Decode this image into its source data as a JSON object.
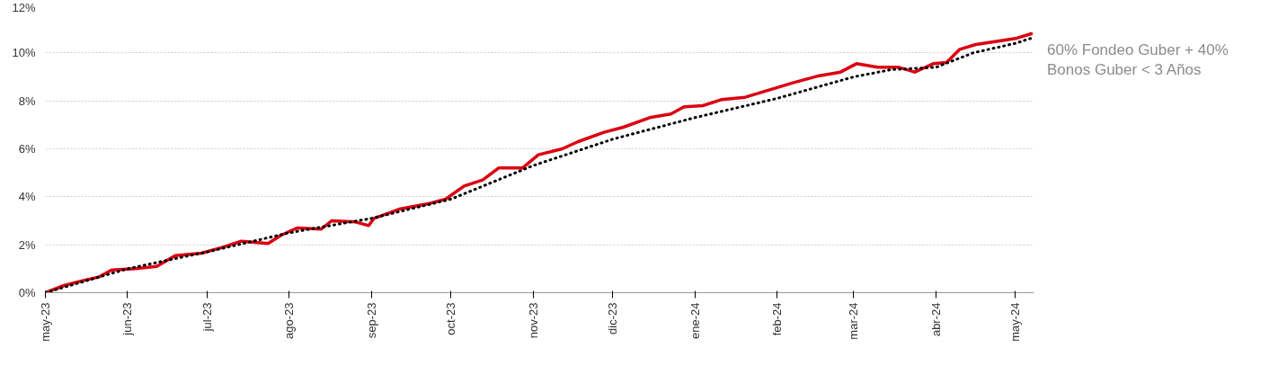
{
  "chart_data": {
    "type": "line",
    "ylim": [
      0,
      12
    ],
    "yticks": [
      {
        "value": 0,
        "label": "0%"
      },
      {
        "value": 2,
        "label": "2%"
      },
      {
        "value": 4,
        "label": "4%"
      },
      {
        "value": 6,
        "label": "6%"
      },
      {
        "value": 8,
        "label": "8%"
      },
      {
        "value": 10,
        "label": "10%"
      },
      {
        "value": 12,
        "label": "12%"
      }
    ],
    "xlim": [
      "2023-05-01",
      "2024-05-08"
    ],
    "xticks": [
      {
        "value": "2023-05-01",
        "label": "may-23"
      },
      {
        "value": "2023-06-01",
        "label": "jun-23"
      },
      {
        "value": "2023-07-01",
        "label": "jul-23"
      },
      {
        "value": "2023-08-01",
        "label": "ago-23"
      },
      {
        "value": "2023-09-01",
        "label": "sep-23"
      },
      {
        "value": "2023-10-01",
        "label": "oct-23"
      },
      {
        "value": "2023-11-01",
        "label": "nov-23"
      },
      {
        "value": "2023-12-01",
        "label": "dic-23"
      },
      {
        "value": "2024-01-01",
        "label": "ene-24"
      },
      {
        "value": "2024-02-01",
        "label": "feb-24"
      },
      {
        "value": "2024-03-01",
        "label": "mar-24"
      },
      {
        "value": "2024-04-01",
        "label": "abr-24"
      },
      {
        "value": "2024-05-01",
        "label": "may-24"
      }
    ],
    "grid": "y",
    "series": [
      {
        "color": "#db0011",
        "line_style": "solid",
        "x": [
          "2023-05-01",
          "2023-05-08",
          "2023-05-15",
          "2023-05-21",
          "2023-05-26",
          "2023-06-04",
          "2023-06-12",
          "2023-06-19",
          "2023-06-29",
          "2023-07-07",
          "2023-07-14",
          "2023-07-24",
          "2023-07-29",
          "2023-08-04",
          "2023-08-13",
          "2023-08-17",
          "2023-08-26",
          "2023-08-31",
          "2023-09-02",
          "2023-09-12",
          "2023-09-22",
          "2023-09-29",
          "2023-10-06",
          "2023-10-13",
          "2023-10-19",
          "2023-10-28",
          "2023-11-03",
          "2023-11-12",
          "2023-11-18",
          "2023-11-28",
          "2023-12-05",
          "2023-12-15",
          "2023-12-23",
          "2023-12-28",
          "2024-01-04",
          "2024-01-11",
          "2024-01-20",
          "2024-01-29",
          "2024-02-07",
          "2024-02-17",
          "2024-02-25",
          "2024-03-02",
          "2024-03-10",
          "2024-03-18",
          "2024-03-24",
          "2024-03-31",
          "2024-04-05",
          "2024-04-10",
          "2024-04-16",
          "2024-04-25",
          "2024-05-01",
          "2024-05-07"
        ],
        "values": [
          0,
          0.3,
          0.5,
          0.65,
          0.95,
          1.0,
          1.1,
          1.55,
          1.65,
          1.9,
          2.15,
          2.05,
          2.4,
          2.7,
          2.65,
          3.0,
          2.95,
          2.8,
          3.1,
          3.5,
          3.7,
          3.9,
          4.45,
          4.7,
          5.2,
          5.2,
          5.75,
          6.0,
          6.3,
          6.7,
          6.9,
          7.3,
          7.45,
          7.75,
          7.8,
          8.05,
          8.15,
          8.45,
          8.75,
          9.05,
          9.2,
          9.55,
          9.4,
          9.4,
          9.2,
          9.55,
          9.6,
          10.15,
          10.35,
          10.5,
          10.6,
          10.8
        ]
      },
      {
        "name": "60% Fondeo Guber + 40% Bonos Guber < 3 Años",
        "color": "#000000",
        "line_style": "dotted",
        "x": [
          "2023-05-01",
          "2023-06-01",
          "2023-07-01",
          "2023-08-01",
          "2023-09-01",
          "2023-10-01",
          "2023-11-01",
          "2023-12-01",
          "2024-01-01",
          "2024-02-01",
          "2024-03-01",
          "2024-03-15",
          "2024-04-01",
          "2024-04-15",
          "2024-05-01",
          "2024-05-08"
        ],
        "values": [
          0,
          1.0,
          1.7,
          2.5,
          3.1,
          3.9,
          5.3,
          6.4,
          7.3,
          8.1,
          9.0,
          9.3,
          9.4,
          10.0,
          10.4,
          10.65
        ]
      }
    ]
  }
}
